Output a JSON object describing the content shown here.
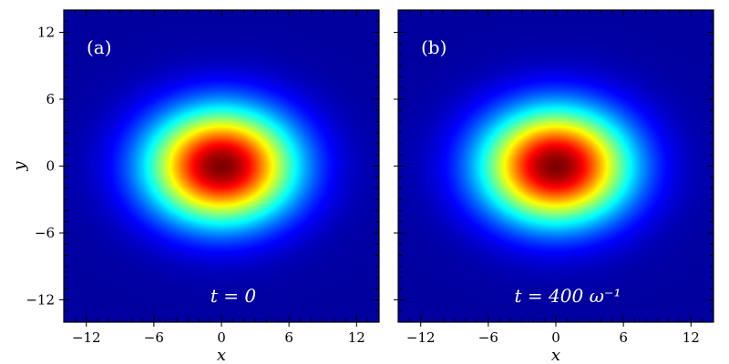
{
  "chart_data": [
    {
      "type": "heatmap",
      "panel_label": "(a)",
      "annotation": "t = 0",
      "xlabel": "x",
      "ylabel": "y",
      "xlim": [
        -14,
        14
      ],
      "ylim": [
        -14,
        14
      ],
      "xticks": [
        -12,
        -6,
        0,
        6,
        12
      ],
      "yticks": [
        -12,
        -6,
        0,
        6,
        12
      ],
      "colormap": "jet",
      "peak_center": [
        0,
        0
      ],
      "sigma_x": 4.6,
      "sigma_y": 3.6
    },
    {
      "type": "heatmap",
      "panel_label": "(b)",
      "annotation": "t = 400 ω⁻¹",
      "xlabel": "x",
      "ylabel": "",
      "xlim": [
        -14,
        14
      ],
      "ylim": [
        -14,
        14
      ],
      "xticks": [
        -12,
        -6,
        0,
        6,
        12
      ],
      "yticks": [
        -12,
        -6,
        0,
        6,
        12
      ],
      "colormap": "jet",
      "peak_center": [
        0,
        0
      ],
      "sigma_x": 4.6,
      "sigma_y": 3.6
    }
  ],
  "tick_text": {
    "x": [
      "−12",
      "−6",
      "0",
      "6",
      "12"
    ],
    "y": [
      "−12",
      "−6",
      "0",
      "6",
      "12"
    ]
  },
  "colors": {
    "jet_stops": [
      "#00007f",
      "#0000ff",
      "#00ffff",
      "#ffff00",
      "#ff0000",
      "#7f0000"
    ],
    "frame": "#000000"
  }
}
